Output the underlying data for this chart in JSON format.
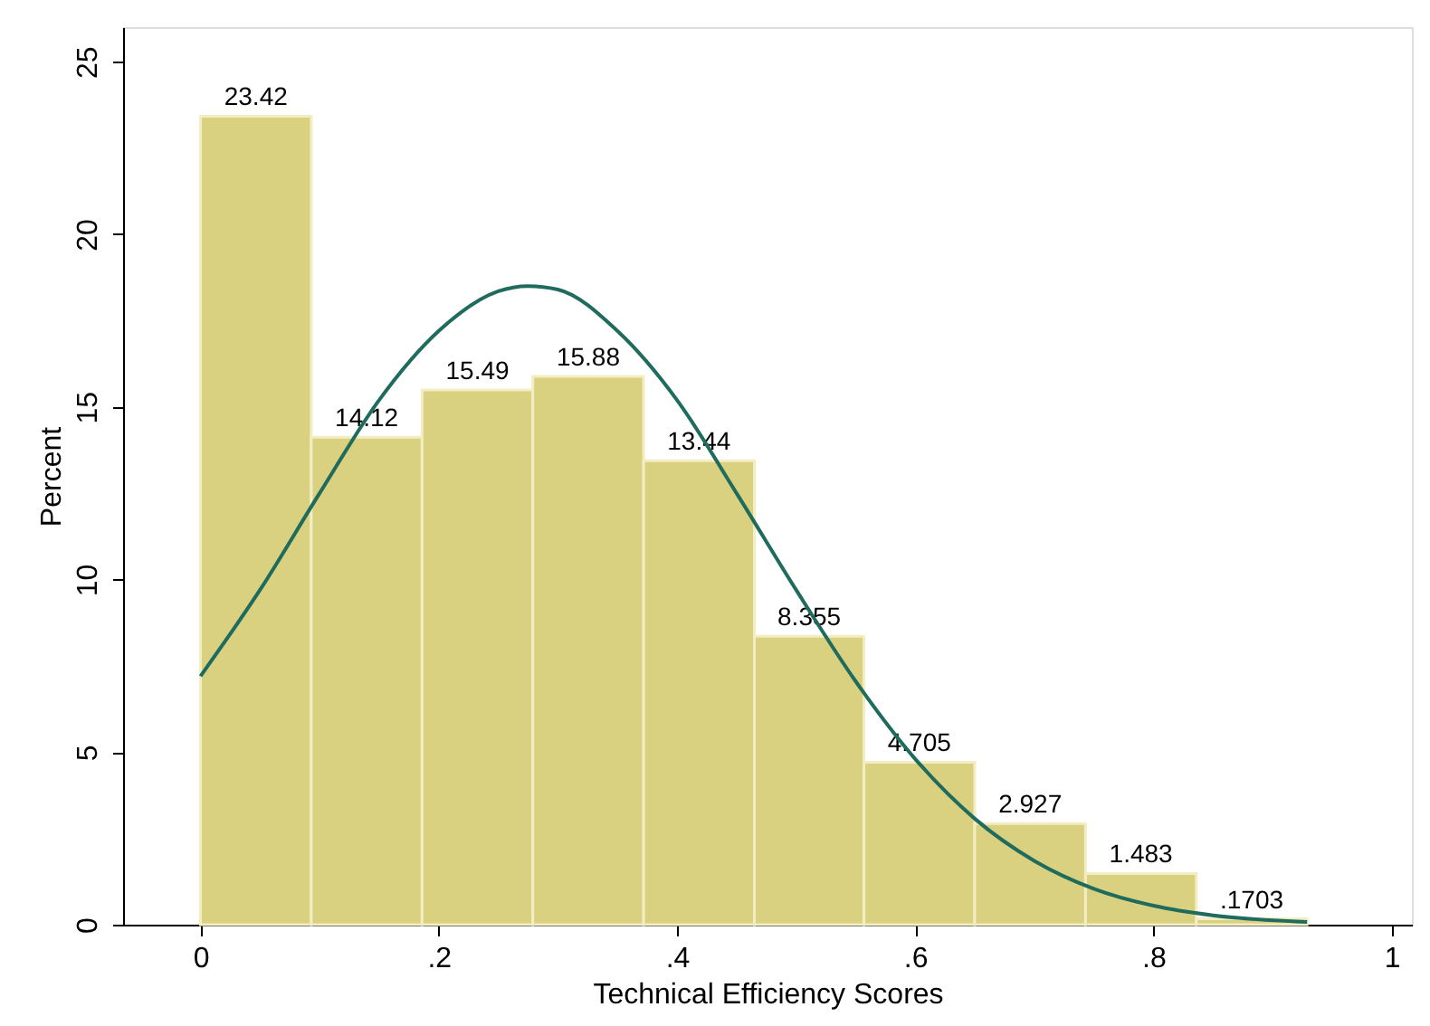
{
  "chart_data": {
    "type": "histogram",
    "xlabel": "Technical Efficiency Scores",
    "ylabel": "Percent",
    "bins": [
      0,
      0.093,
      0.186,
      0.279,
      0.372,
      0.465,
      0.557,
      0.65,
      0.743,
      0.836,
      0.929
    ],
    "values": [
      23.42,
      14.12,
      15.49,
      15.88,
      13.44,
      8.355,
      4.705,
      2.927,
      1.483,
      0.1703
    ],
    "value_labels": [
      "23.42",
      "14.12",
      "15.49",
      "15.88",
      "13.44",
      "8.355",
      "4.705",
      "2.927",
      "1.483",
      ".1703"
    ],
    "color": "#d9d17f",
    "series": [
      {
        "type": "line",
        "color": "#1f6b5e",
        "x": [
          0,
          0.05,
          0.1,
          0.15,
          0.2,
          0.25,
          0.275,
          0.3,
          0.35,
          0.4,
          0.45,
          0.5,
          0.55,
          0.6,
          0.65,
          0.7,
          0.75,
          0.8,
          0.85,
          0.929
        ],
        "values": [
          7.2,
          9.7,
          12.5,
          15.2,
          17.2,
          18.35,
          18.5,
          18.4,
          17.2,
          15.2,
          12.5,
          9.7,
          7.05,
          4.8,
          3.07,
          1.85,
          1.04,
          0.55,
          0.27,
          0.08
        ]
      }
    ],
    "xlim": [
      -0.065,
      1.017
    ],
    "xticks": [
      {
        "value": 0,
        "label": "0"
      },
      {
        "value": 0.2,
        "label": ".2"
      },
      {
        "value": 0.4,
        "label": ".4"
      },
      {
        "value": 0.6,
        "label": ".6"
      },
      {
        "value": 0.8,
        "label": ".8"
      },
      {
        "value": 1,
        "label": "1"
      }
    ],
    "ylim": [
      0,
      26
    ],
    "yticks": [
      0,
      5,
      10,
      15,
      20,
      25
    ],
    "grid": false
  }
}
